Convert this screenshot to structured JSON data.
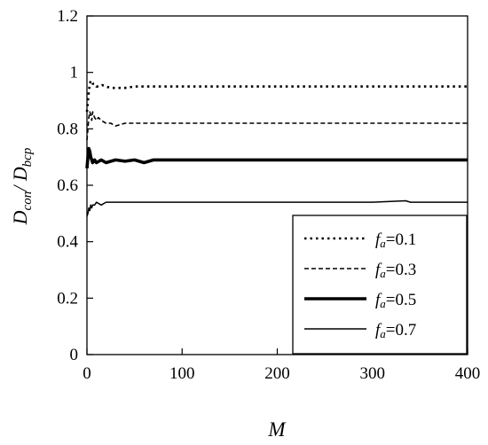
{
  "chart_data": {
    "type": "line",
    "xlabel": "M",
    "ylabel_main1": "D",
    "ylabel_sub1": "con",
    "ylabel_sep": "/ D",
    "ylabel_sub2": "bcp",
    "xlim": [
      0,
      400
    ],
    "ylim": [
      0,
      1.2
    ],
    "x_ticks": [
      "0",
      "100",
      "200",
      "300",
      "400"
    ],
    "y_ticks": [
      "0",
      "0.2",
      "0.4",
      "0.6",
      "0.8",
      "1",
      "1.2"
    ],
    "x_tick_values": [
      0,
      100,
      200,
      300,
      400
    ],
    "y_tick_values": [
      0,
      0.2,
      0.4,
      0.6,
      0.8,
      1.0,
      1.2
    ],
    "grid": false,
    "legend_position": "bottom-right",
    "series": [
      {
        "name": "fa=0.1",
        "legend_f": "f",
        "legend_sub": "a",
        "legend_val": "=0.1",
        "style": "dotted",
        "x": [
          0,
          1,
          2,
          3,
          4,
          5,
          6,
          8,
          10,
          13,
          16,
          20,
          25,
          30,
          40,
          50,
          60,
          80,
          100,
          200,
          300,
          400
        ],
        "y": [
          0.86,
          0.9,
          0.93,
          0.96,
          0.97,
          0.97,
          0.96,
          0.96,
          0.95,
          0.95,
          0.955,
          0.95,
          0.945,
          0.945,
          0.945,
          0.95,
          0.95,
          0.95,
          0.95,
          0.95,
          0.95,
          0.95
        ]
      },
      {
        "name": "fa=0.3",
        "legend_f": "f",
        "legend_sub": "a",
        "legend_val": "=0.3",
        "style": "dashed",
        "x": [
          0,
          1,
          2,
          3,
          4,
          5,
          6,
          8,
          10,
          12,
          15,
          20,
          25,
          30,
          40,
          60,
          80,
          100,
          200,
          300,
          400
        ],
        "y": [
          0.76,
          0.8,
          0.84,
          0.86,
          0.85,
          0.83,
          0.86,
          0.84,
          0.83,
          0.84,
          0.83,
          0.82,
          0.82,
          0.81,
          0.82,
          0.82,
          0.82,
          0.82,
          0.82,
          0.82,
          0.82
        ]
      },
      {
        "name": "fa=0.5",
        "legend_f": "f",
        "legend_sub": "a",
        "legend_val": "=0.5",
        "style": "thick",
        "x": [
          0,
          1,
          2,
          3,
          4,
          5,
          6,
          8,
          10,
          15,
          20,
          30,
          40,
          50,
          60,
          70,
          80,
          100,
          200,
          300,
          400
        ],
        "y": [
          0.66,
          0.7,
          0.73,
          0.72,
          0.7,
          0.69,
          0.68,
          0.69,
          0.68,
          0.69,
          0.68,
          0.69,
          0.685,
          0.69,
          0.68,
          0.69,
          0.69,
          0.69,
          0.69,
          0.69,
          0.69
        ]
      },
      {
        "name": "fa=0.7",
        "legend_f": "f",
        "legend_sub": "a",
        "legend_val": "=0.7",
        "style": "thin",
        "x": [
          0,
          1,
          2,
          3,
          4,
          5,
          6,
          8,
          10,
          15,
          20,
          25,
          30,
          40,
          60,
          100,
          200,
          300,
          335,
          340,
          400
        ],
        "y": [
          0.49,
          0.5,
          0.52,
          0.51,
          0.53,
          0.52,
          0.53,
          0.53,
          0.54,
          0.53,
          0.54,
          0.54,
          0.54,
          0.54,
          0.54,
          0.54,
          0.54,
          0.54,
          0.545,
          0.54,
          0.54
        ]
      }
    ]
  }
}
